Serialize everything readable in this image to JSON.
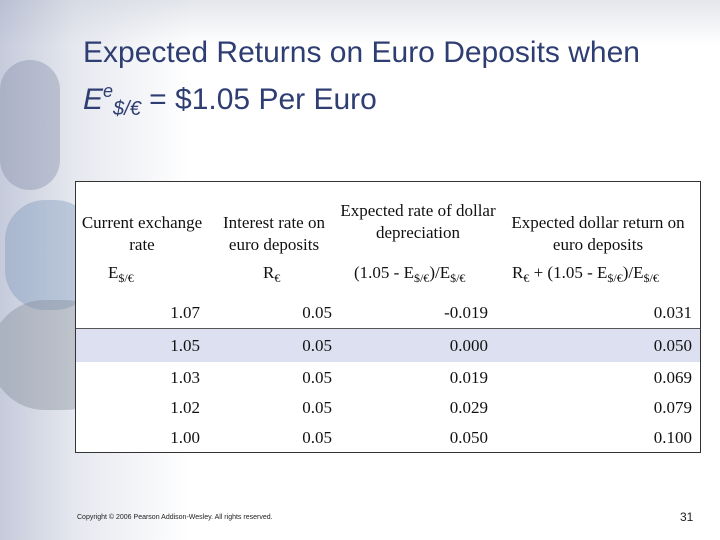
{
  "title": {
    "line1": "Expected Returns on Euro Deposits when",
    "e": "E",
    "e_sup": "e",
    "e_sub": "$/€",
    "rest": " = $1.05 Per Euro"
  },
  "table": {
    "headers": [
      "Current exchange rate",
      "Interest rate on euro deposits",
      "Expected rate of dollar depreciation",
      "Expected dollar return on euro deposits"
    ],
    "symbols": {
      "c1_main": "E",
      "c1_sub": "$/€",
      "c2_main": "R",
      "c2_sub": "€",
      "c3_a": "(1.05 - E",
      "c3_sub1": "$/€",
      "c3_b": ")/E",
      "c3_sub2": "$/€",
      "c4_a": "R",
      "c4_sub1": "€",
      "c4_b": " + (1.05 - E",
      "c4_sub2": "$/€",
      "c4_c": ")/E",
      "c4_sub3": "$/€"
    },
    "rows": [
      [
        "1.07",
        "0.05",
        "-0.019",
        "0.031"
      ],
      [
        "1.05",
        "0.05",
        "0.000",
        "0.050"
      ],
      [
        "1.03",
        "0.05",
        "0.019",
        "0.069"
      ],
      [
        "1.02",
        "0.05",
        "0.029",
        "0.079"
      ],
      [
        "1.00",
        "0.05",
        "0.050",
        "0.100"
      ]
    ]
  },
  "footer": {
    "copyright": "Copyright © 2006 Pearson Addison-Wesley. All rights reserved.",
    "page_number": "31"
  }
}
